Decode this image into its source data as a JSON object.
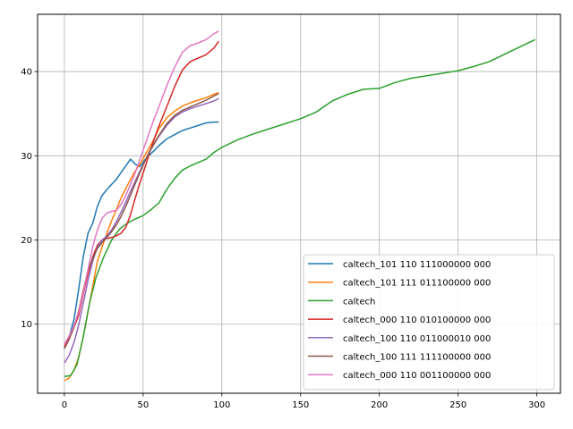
{
  "chart_data": {
    "type": "line",
    "title": "",
    "xlabel": "",
    "ylabel": "",
    "xlim": [
      -17,
      315
    ],
    "ylim": [
      1.8,
      46.8
    ],
    "xticks": [
      0,
      50,
      100,
      150,
      200,
      250,
      300
    ],
    "yticks": [
      10,
      20,
      30,
      40
    ],
    "grid": true,
    "legend_position": "lower-right",
    "series": [
      {
        "name": "caltech_101 110 111000000 000",
        "color": "#1f77b4",
        "x": [
          0,
          3,
          6,
          9,
          12,
          15,
          18,
          21,
          24,
          27,
          30,
          33,
          36,
          39,
          42,
          45,
          48,
          51,
          54,
          57,
          60,
          65,
          70,
          75,
          80,
          85,
          90,
          95,
          98
        ],
        "y": [
          7.2,
          8.5,
          10.5,
          14,
          18,
          20.8,
          22,
          24,
          25.3,
          26,
          26.6,
          27.2,
          28,
          28.8,
          29.6,
          29,
          28.7,
          29.5,
          30.1,
          30.6,
          31.2,
          32,
          32.5,
          33,
          33.3,
          33.6,
          33.9,
          34,
          34
        ]
      },
      {
        "name": "caltech_101 111 011100000 000",
        "color": "#ff7f0e",
        "x": [
          0,
          3,
          6,
          9,
          12,
          15,
          18,
          21,
          24,
          27,
          30,
          33,
          36,
          39,
          42,
          45,
          48,
          51,
          54,
          57,
          60,
          65,
          70,
          75,
          80,
          85,
          90,
          95,
          98
        ],
        "y": [
          3.3,
          3.6,
          4.5,
          6,
          8.5,
          11.5,
          14.5,
          17.5,
          19.2,
          20.8,
          22.3,
          23.6,
          25,
          26.1,
          27.2,
          28.2,
          29,
          30,
          31,
          32,
          33.2,
          34.5,
          35.3,
          35.9,
          36.3,
          36.6,
          36.9,
          37.3,
          37.5
        ]
      },
      {
        "name": "caltech",
        "color": "#2ca02c",
        "x": [
          0,
          4,
          8,
          12,
          16,
          20,
          25,
          30,
          35,
          40,
          45,
          50,
          55,
          60,
          65,
          70,
          75,
          80,
          85,
          90,
          95,
          100,
          110,
          120,
          130,
          140,
          150,
          160,
          170,
          180,
          190,
          200,
          210,
          220,
          230,
          240,
          250,
          260,
          270,
          280,
          290,
          299
        ],
        "y": [
          3.8,
          3.9,
          5.2,
          8.5,
          12.5,
          15.5,
          18,
          20,
          21.3,
          22,
          22.5,
          22.9,
          23.6,
          24.4,
          26,
          27.3,
          28.3,
          28.8,
          29.2,
          29.6,
          30.4,
          31,
          31.9,
          32.6,
          33.2,
          33.8,
          34.4,
          35.2,
          36.5,
          37.3,
          37.9,
          38,
          38.7,
          39.2,
          39.5,
          39.8,
          40.1,
          40.6,
          41.2,
          42.1,
          43,
          43.8
        ]
      },
      {
        "name": "caltech_000 110 010100000 000",
        "color": "#d62728",
        "x": [
          0,
          3,
          6,
          9,
          12,
          15,
          18,
          21,
          24,
          27,
          30,
          33,
          36,
          39,
          42,
          45,
          48,
          51,
          54,
          57,
          60,
          65,
          70,
          75,
          80,
          85,
          90,
          95,
          98
        ],
        "y": [
          7.3,
          8.4,
          9.6,
          11,
          13.6,
          16,
          18,
          19.4,
          20,
          20.2,
          20.3,
          20.5,
          20.8,
          21.5,
          23,
          25,
          26.8,
          28.5,
          30.3,
          32,
          33.5,
          35.8,
          38.2,
          40.2,
          41.2,
          41.6,
          42,
          42.8,
          43.6
        ]
      },
      {
        "name": "caltech_100 110 011000010 000",
        "color": "#9467bd",
        "x": [
          0,
          3,
          6,
          9,
          12,
          15,
          18,
          21,
          24,
          27,
          30,
          33,
          36,
          39,
          42,
          45,
          48,
          51,
          54,
          57,
          60,
          65,
          70,
          75,
          80,
          85,
          90,
          95,
          98
        ],
        "y": [
          5.4,
          6.3,
          7.8,
          9.8,
          12.5,
          15.2,
          17.5,
          19.2,
          20,
          20.5,
          21.2,
          22.2,
          23.3,
          24.5,
          25.8,
          27,
          28.2,
          29.3,
          30.4,
          31.4,
          32.3,
          33.6,
          34.6,
          35.2,
          35.6,
          35.9,
          36.2,
          36.5,
          36.8
        ]
      },
      {
        "name": "caltech_100 111 111100000 000",
        "color": "#8c564b",
        "x": [
          0,
          3,
          6,
          9,
          12,
          15,
          18,
          21,
          24,
          27,
          30,
          33,
          36,
          39,
          42,
          45,
          48,
          51,
          54,
          57,
          60,
          65,
          70,
          75,
          80,
          85,
          90,
          95,
          98
        ],
        "y": [
          7.1,
          8.2,
          9.6,
          11.5,
          14,
          16.4,
          17.8,
          19,
          19.7,
          20.3,
          21,
          21.8,
          22.8,
          24,
          25.3,
          26.7,
          28,
          29.3,
          30.5,
          31.5,
          32.4,
          33.8,
          34.8,
          35.4,
          35.8,
          36.2,
          36.6,
          37.1,
          37.4
        ]
      },
      {
        "name": "caltech_000 110 001100000 000",
        "color": "#e377c2",
        "x": [
          0,
          3,
          6,
          9,
          12,
          15,
          18,
          21,
          24,
          27,
          30,
          33,
          36,
          39,
          42,
          45,
          48,
          51,
          54,
          57,
          60,
          65,
          70,
          75,
          80,
          85,
          90,
          95,
          98
        ],
        "y": [
          7.6,
          8.6,
          9.8,
          11.4,
          13.8,
          16.5,
          19.2,
          21.2,
          22.6,
          23.2,
          23.4,
          23.5,
          24.2,
          25.3,
          26.6,
          28,
          29.6,
          31.2,
          32.8,
          34.4,
          35.8,
          38.3,
          40.5,
          42.3,
          43.1,
          43.4,
          43.8,
          44.5,
          44.8
        ]
      }
    ]
  }
}
